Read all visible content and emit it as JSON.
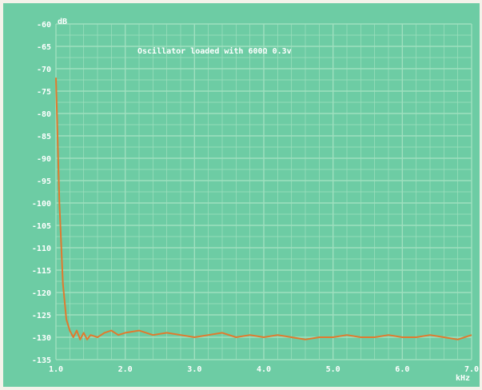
{
  "chart_data": {
    "type": "line",
    "title": "Oscillator loaded with 600Ω 0.3v",
    "xlabel": "kHz",
    "ylabel": "dB",
    "xlim": [
      1.0,
      7.0
    ],
    "ylim": [
      -135,
      -60
    ],
    "x_ticks": [
      "1.0",
      "2.0",
      "3.0",
      "4.0",
      "5.0",
      "6.0",
      "7.0"
    ],
    "y_ticks": [
      "-60",
      "-65",
      "-70",
      "-75",
      "-80",
      "-85",
      "-90",
      "-95",
      "-100",
      "-105",
      "-110",
      "-115",
      "-120",
      "-125",
      "-130",
      "-135"
    ],
    "grid": true,
    "series": [
      {
        "color": "#e07a2e",
        "x": [
          1.0,
          1.05,
          1.1,
          1.15,
          1.2,
          1.25,
          1.3,
          1.35,
          1.4,
          1.45,
          1.5,
          1.6,
          1.7,
          1.8,
          1.9,
          2.0,
          2.2,
          2.4,
          2.6,
          2.8,
          3.0,
          3.2,
          3.4,
          3.6,
          3.8,
          4.0,
          4.2,
          4.4,
          4.6,
          4.8,
          5.0,
          5.2,
          5.4,
          5.6,
          5.8,
          6.0,
          6.2,
          6.4,
          6.6,
          6.8,
          7.0
        ],
        "y": [
          -72,
          -100,
          -118,
          -126,
          -128.5,
          -130,
          -128.5,
          -130.5,
          -129,
          -130.5,
          -129.5,
          -130,
          -129,
          -128.5,
          -129.5,
          -129,
          -128.5,
          -129.5,
          -129,
          -129.5,
          -130,
          -129.5,
          -129,
          -130,
          -129.5,
          -130,
          -129.5,
          -130,
          -130.5,
          -130,
          -130,
          -129.5,
          -130,
          -130,
          -129.5,
          -130,
          -130,
          -129.5,
          -130,
          -130.5,
          -129.5
        ]
      }
    ]
  }
}
